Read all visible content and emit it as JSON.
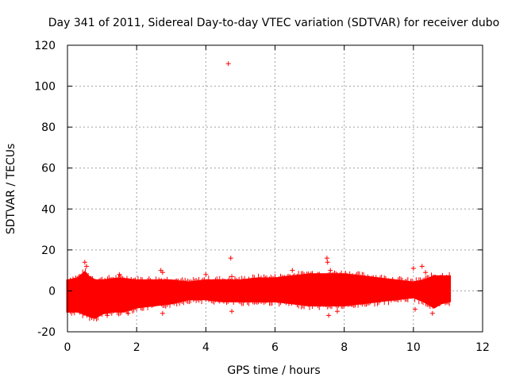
{
  "chart_data": {
    "type": "scatter",
    "title": "Day 341 of 2011, Sidereal Day-to-day VTEC variation (SDTVAR) for receiver dubo",
    "xlabel": "GPS time / hours",
    "ylabel": "SDTVAR / TECUs",
    "xlim": [
      0,
      12
    ],
    "ylim": [
      -20,
      120
    ],
    "xticks": [
      0,
      2,
      4,
      6,
      8,
      10,
      12
    ],
    "yticks": [
      -20,
      0,
      20,
      40,
      60,
      80,
      100,
      120
    ],
    "grid": true,
    "marker": "+",
    "color": "#ff0000",
    "band": {
      "x_start": 0,
      "x_end": 11.05,
      "lower_env": [
        [
          0.0,
          -10
        ],
        [
          0.3,
          -10
        ],
        [
          0.6,
          -12
        ],
        [
          0.8,
          -13
        ],
        [
          1.0,
          -11
        ],
        [
          1.3,
          -10
        ],
        [
          1.6,
          -10
        ],
        [
          2.0,
          -8
        ],
        [
          2.5,
          -7
        ],
        [
          3.0,
          -6
        ],
        [
          3.5,
          -4
        ],
        [
          4.0,
          -4
        ],
        [
          4.5,
          -5
        ],
        [
          5.0,
          -5
        ],
        [
          5.5,
          -5
        ],
        [
          6.0,
          -5
        ],
        [
          6.5,
          -6
        ],
        [
          7.0,
          -7
        ],
        [
          7.5,
          -7
        ],
        [
          8.0,
          -7
        ],
        [
          8.5,
          -6
        ],
        [
          9.0,
          -5
        ],
        [
          9.5,
          -4
        ],
        [
          10.0,
          -3
        ],
        [
          10.3,
          -5
        ],
        [
          10.6,
          -8
        ],
        [
          10.8,
          -6
        ],
        [
          11.05,
          -5
        ]
      ],
      "upper_env": [
        [
          0.0,
          5
        ],
        [
          0.3,
          6
        ],
        [
          0.5,
          9
        ],
        [
          0.6,
          7
        ],
        [
          0.8,
          5
        ],
        [
          1.0,
          5
        ],
        [
          1.5,
          6
        ],
        [
          2.0,
          5
        ],
        [
          2.5,
          5
        ],
        [
          3.0,
          5
        ],
        [
          3.5,
          4
        ],
        [
          4.0,
          5
        ],
        [
          4.5,
          5
        ],
        [
          5.0,
          5
        ],
        [
          5.5,
          6
        ],
        [
          6.0,
          6
        ],
        [
          6.5,
          7
        ],
        [
          7.0,
          8
        ],
        [
          7.5,
          8
        ],
        [
          8.0,
          8
        ],
        [
          8.5,
          7
        ],
        [
          9.0,
          6
        ],
        [
          9.5,
          5
        ],
        [
          10.0,
          4
        ],
        [
          10.3,
          5
        ],
        [
          10.6,
          7
        ],
        [
          10.8,
          7
        ],
        [
          11.05,
          7
        ]
      ]
    },
    "outliers": [
      {
        "x": 0.5,
        "y": 14
      },
      {
        "x": 0.55,
        "y": 12
      },
      {
        "x": 1.5,
        "y": 8
      },
      {
        "x": 2.7,
        "y": 10
      },
      {
        "x": 2.75,
        "y": 9
      },
      {
        "x": 2.75,
        "y": -11
      },
      {
        "x": 4.0,
        "y": 8
      },
      {
        "x": 4.65,
        "y": 111
      },
      {
        "x": 4.72,
        "y": 16
      },
      {
        "x": 4.75,
        "y": 7
      },
      {
        "x": 4.75,
        "y": -10
      },
      {
        "x": 6.5,
        "y": 10
      },
      {
        "x": 7.5,
        "y": 16
      },
      {
        "x": 7.52,
        "y": 14
      },
      {
        "x": 7.55,
        "y": -12
      },
      {
        "x": 7.6,
        "y": 10
      },
      {
        "x": 7.8,
        "y": -10
      },
      {
        "x": 10.0,
        "y": 11
      },
      {
        "x": 10.05,
        "y": -9
      },
      {
        "x": 10.25,
        "y": 12
      },
      {
        "x": 10.35,
        "y": 9
      },
      {
        "x": 10.55,
        "y": -11
      },
      {
        "x": 10.5,
        "y": 5
      },
      {
        "x": 0.7,
        "y": -13
      },
      {
        "x": 1.15,
        "y": -12
      },
      {
        "x": 1.75,
        "y": -11
      }
    ]
  }
}
